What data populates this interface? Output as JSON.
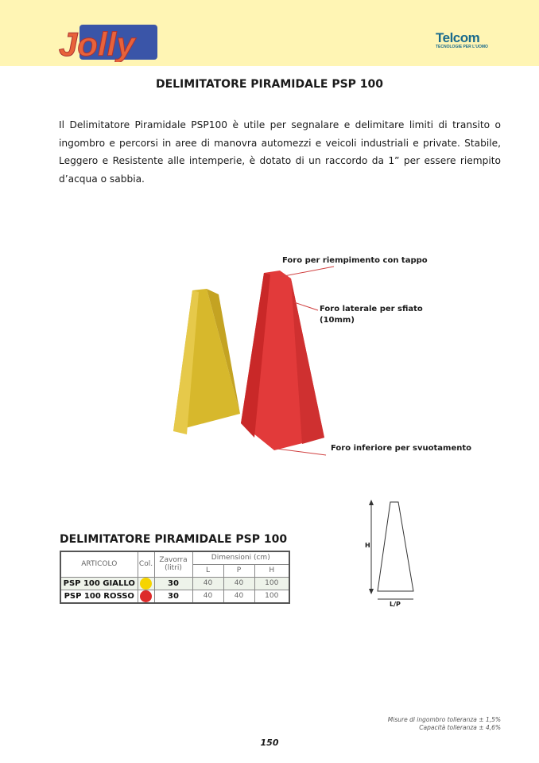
{
  "header": {
    "brand_logo": "Jolly",
    "partner_logo": "Telcom",
    "partner_tagline": "TECNOLOGIE PER L'UOMO"
  },
  "title": "DELIMITATORE PIRAMIDALE PSP 100",
  "description": "Il Delimitatore Piramidale PSP100 è utile per segnalare e delimitare limiti di transito o ingombro e percorsi in aree di manovra automezzi e veicoli industriali e private. Stabile, Leggero e Resistente alle intemperie, è dotato di un raccordo da 1” per essere riempito d’acqua o sabbia.",
  "callouts": {
    "top": "Foro per riempimento con tappo",
    "side": "Foro laterale per sfiato",
    "side2": "(10mm)",
    "bottom": "Foro inferiore per svuotamento"
  },
  "diagram": {
    "h": "H",
    "lp": "L/P"
  },
  "table": {
    "title": "DELIMITATORE PIRAMIDALE PSP 100",
    "headers": {
      "articolo": "ARTICOLO",
      "col": "Col.",
      "zavorra": "Zavorra (litri)",
      "dimensioni": "Dimensioni (cm)",
      "l": "L",
      "p": "P",
      "h": "H"
    },
    "rows": [
      {
        "articolo": "PSP 100 GIALLO",
        "color": "#f5d400",
        "zavorra": "30",
        "l": "40",
        "p": "40",
        "h": "100"
      },
      {
        "articolo": "PSP 100 ROSSO",
        "color": "#dd2a2a",
        "zavorra": "30",
        "l": "40",
        "p": "40",
        "h": "100"
      }
    ]
  },
  "notes": {
    "line1": "Misure di ingombro tolleranza ± 1,5%",
    "line2": "Capacità tolleranza ± 4,6%"
  },
  "page_number": "150"
}
